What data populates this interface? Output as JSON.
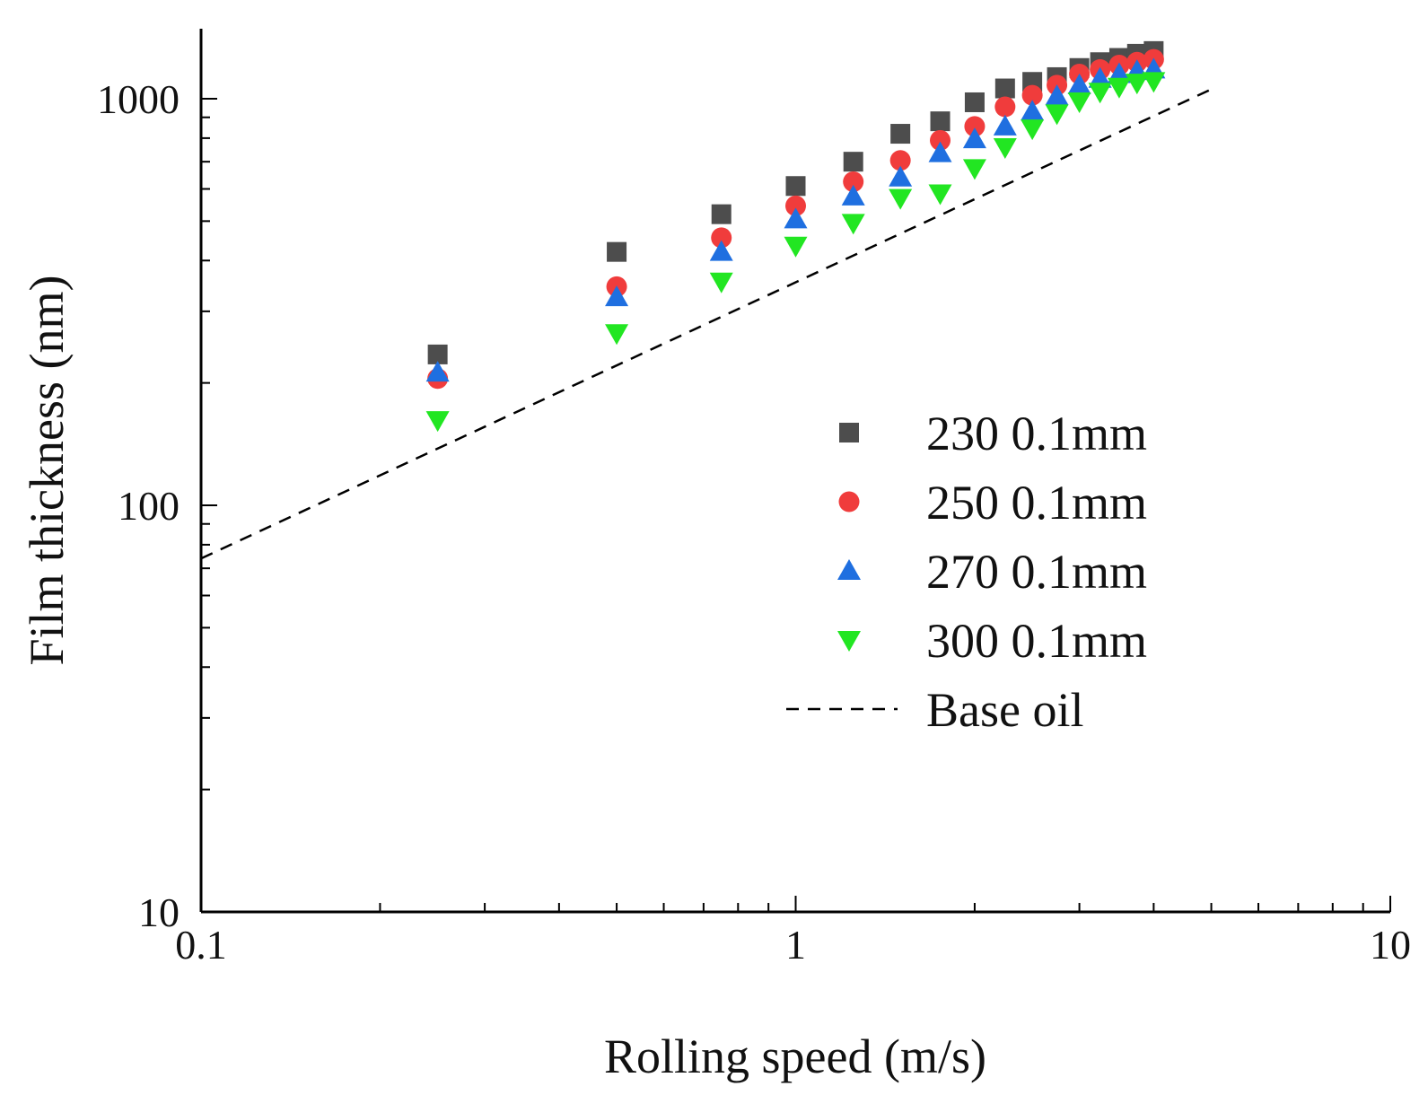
{
  "chart_data": {
    "type": "scatter",
    "xscale": "log",
    "yscale": "log",
    "xlim": [
      0.1,
      10
    ],
    "ylim": [
      10,
      1500
    ],
    "xlabel": "Rolling speed (m/s)",
    "ylabel": "Film thickness (nm)",
    "xticks": [
      {
        "value": 0.1,
        "label": "0.1"
      },
      {
        "value": 1,
        "label": "1"
      },
      {
        "value": 10,
        "label": "10"
      }
    ],
    "yticks": [
      {
        "value": 10,
        "label": "10"
      },
      {
        "value": 100,
        "label": "100"
      },
      {
        "value": 1000,
        "label": "1000"
      }
    ],
    "legend_position": "right-center",
    "series": [
      {
        "name": "230 0.1mm",
        "marker": "square",
        "color": "#4d4d4d",
        "x": [
          0.25,
          0.5,
          0.75,
          1.0,
          1.25,
          1.5,
          1.75,
          2.0,
          2.25,
          2.5,
          2.75,
          3.0,
          3.25,
          3.5,
          3.75,
          4.0
        ],
        "y": [
          235,
          420,
          520,
          610,
          700,
          820,
          880,
          980,
          1060,
          1100,
          1130,
          1190,
          1230,
          1260,
          1290,
          1310
        ]
      },
      {
        "name": "250 0.1mm",
        "marker": "circle",
        "color": "#f03c3c",
        "x": [
          0.25,
          0.5,
          0.75,
          1.0,
          1.25,
          1.5,
          1.75,
          2.0,
          2.25,
          2.5,
          2.75,
          3.0,
          3.25,
          3.5,
          3.75,
          4.0
        ],
        "y": [
          205,
          345,
          455,
          545,
          625,
          705,
          790,
          855,
          955,
          1020,
          1080,
          1150,
          1180,
          1210,
          1230,
          1250
        ]
      },
      {
        "name": "270 0.1mm",
        "marker": "triangle-up",
        "color": "#1f6fe0",
        "x": [
          0.25,
          0.5,
          0.75,
          1.0,
          1.25,
          1.5,
          1.75,
          2.0,
          2.25,
          2.5,
          2.75,
          3.0,
          3.25,
          3.5,
          3.75,
          4.0
        ],
        "y": [
          212,
          325,
          420,
          505,
          575,
          640,
          735,
          795,
          855,
          930,
          1015,
          1080,
          1120,
          1150,
          1170,
          1180
        ]
      },
      {
        "name": "300 0.1mm",
        "marker": "triangle-down",
        "color": "#22e622",
        "x": [
          0.25,
          0.5,
          0.75,
          1.0,
          1.25,
          1.5,
          1.75,
          2.0,
          2.25,
          2.5,
          2.75,
          3.0,
          3.25,
          3.5,
          3.75,
          4.0
        ],
        "y": [
          162,
          265,
          355,
          435,
          495,
          570,
          585,
          675,
          760,
          845,
          920,
          985,
          1040,
          1070,
          1095,
          1105
        ]
      }
    ],
    "reference_line": {
      "name": "Base oil",
      "style": "dashed",
      "color": "#000000",
      "x": [
        0.1,
        5.0
      ],
      "y": [
        74,
        1055
      ]
    }
  }
}
